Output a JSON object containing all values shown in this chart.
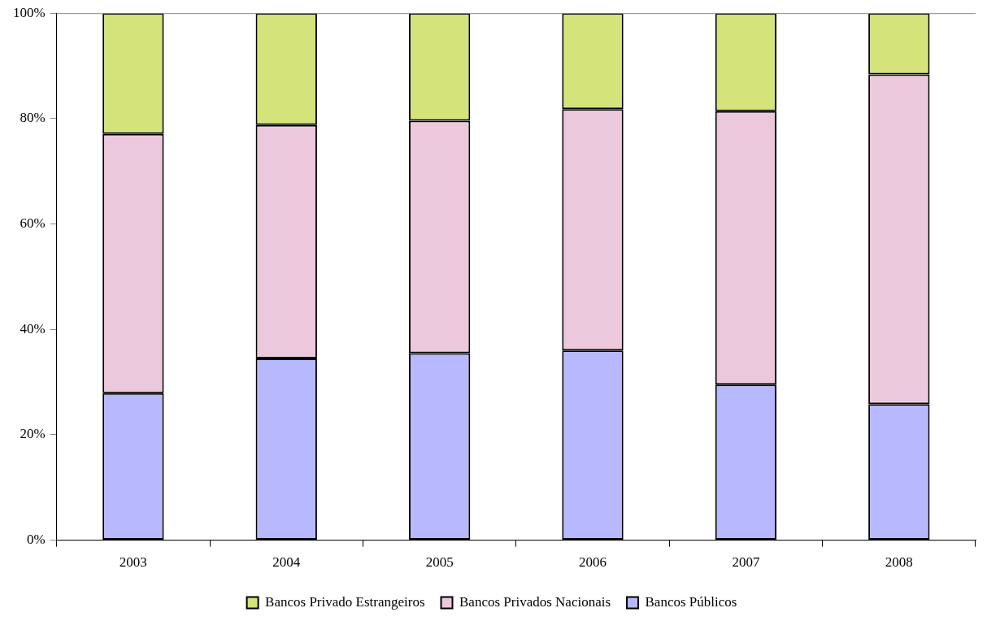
{
  "chart_data": {
    "type": "bar",
    "stacked": true,
    "categories": [
      "2003",
      "2004",
      "2005",
      "2006",
      "2007",
      "2008"
    ],
    "series": [
      {
        "name": "Bancos Públicos",
        "color": "#b8b8ff",
        "values": [
          27.9,
          34.5,
          35.5,
          36.0,
          29.5,
          25.8
        ]
      },
      {
        "name": "Bancos Privados Nacionais",
        "color": "#ecc8dc",
        "values": [
          49.2,
          44.3,
          44.1,
          45.8,
          51.9,
          62.6
        ]
      },
      {
        "name": "Bancos Privado Estrangeiros",
        "color": "#d4e37a",
        "values": [
          22.9,
          21.2,
          20.4,
          18.2,
          18.6,
          11.6
        ]
      }
    ],
    "ylim": [
      0,
      100
    ],
    "yticks": [
      {
        "value": 0,
        "label": "0%"
      },
      {
        "value": 20,
        "label": "20%"
      },
      {
        "value": 40,
        "label": "40%"
      },
      {
        "value": 60,
        "label": "60%"
      },
      {
        "value": 80,
        "label": "80%"
      },
      {
        "value": 100,
        "label": "100%"
      }
    ],
    "grid": false,
    "legend": "bottom"
  }
}
